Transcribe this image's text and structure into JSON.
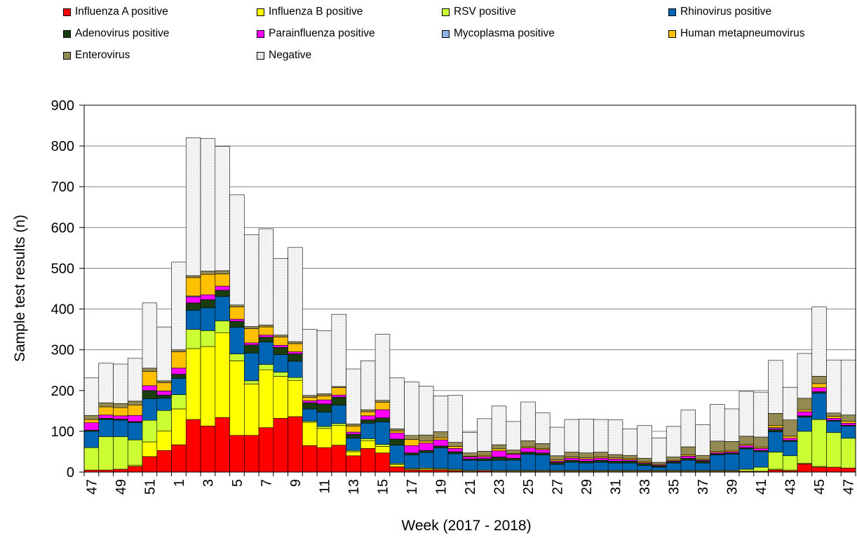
{
  "chart_data": {
    "type": "bar",
    "stacked": true,
    "xlabel": "Week (2017 - 2018)",
    "ylabel": "Sample test results (n)",
    "ylim": [
      0,
      900
    ],
    "yticks": [
      0,
      100,
      200,
      300,
      400,
      500,
      600,
      700,
      800,
      900
    ],
    "grid": true,
    "legend_position": "top",
    "categories": [
      "47",
      "48",
      "49",
      "50",
      "51",
      "52",
      "1",
      "2",
      "3",
      "4",
      "5",
      "6",
      "7",
      "8",
      "9",
      "10",
      "11",
      "12",
      "13",
      "14",
      "15",
      "16",
      "17",
      "18",
      "19",
      "20",
      "21",
      "22",
      "23",
      "24",
      "25",
      "26",
      "27",
      "28",
      "29",
      "30",
      "31",
      "32",
      "33",
      "34",
      "35",
      "36",
      "37",
      "38",
      "39",
      "40",
      "41",
      "42",
      "43",
      "44",
      "45",
      "46",
      "47"
    ],
    "xtick_labels": [
      "47",
      "49",
      "51",
      "1",
      "3",
      "5",
      "7",
      "9",
      "11",
      "13",
      "15",
      "17",
      "19",
      "21",
      "23",
      "25",
      "27",
      "29",
      "31",
      "33",
      "35",
      "37",
      "39",
      "41",
      "43",
      "45",
      "47"
    ],
    "series": [
      {
        "name": "Influenza A positive",
        "color": "#FF0000",
        "pattern": "solid",
        "values": [
          5,
          5,
          7,
          14,
          38,
          53,
          67,
          129,
          113,
          134,
          90,
          90,
          109,
          132,
          136,
          65,
          60,
          66,
          40,
          58,
          47,
          13,
          5,
          5,
          5,
          3,
          2,
          3,
          2,
          2,
          2,
          2,
          2,
          2,
          2,
          2,
          2,
          2,
          2,
          2,
          2,
          2,
          2,
          2,
          2,
          2,
          2,
          5,
          3,
          20,
          12,
          12,
          10
        ]
      },
      {
        "name": "Influenza B positive",
        "color": "#FFFF00",
        "pattern": "solid",
        "values": [
          0,
          0,
          0,
          3,
          36,
          48,
          88,
          174,
          195,
          208,
          183,
          126,
          142,
          103,
          89,
          57,
          47,
          48,
          10,
          19,
          16,
          5,
          2,
          3,
          2,
          2,
          0,
          0,
          0,
          0,
          0,
          0,
          0,
          0,
          0,
          0,
          0,
          0,
          0,
          0,
          0,
          0,
          0,
          0,
          0,
          0,
          0,
          2,
          2,
          2,
          2,
          0,
          0
        ]
      },
      {
        "name": "RSV positive",
        "color": "#CCFF33",
        "pattern": "solid",
        "values": [
          55,
          82,
          80,
          62,
          53,
          50,
          35,
          47,
          39,
          29,
          17,
          8,
          13,
          10,
          7,
          3,
          5,
          5,
          3,
          5,
          5,
          3,
          2,
          2,
          2,
          2,
          2,
          2,
          2,
          2,
          2,
          2,
          2,
          2,
          2,
          2,
          2,
          2,
          2,
          2,
          2,
          2,
          2,
          2,
          2,
          5,
          10,
          42,
          35,
          78,
          115,
          85,
          73
        ]
      },
      {
        "name": "Rhinovirus positive",
        "color": "#0066B3",
        "pattern": "solid",
        "values": [
          40,
          42,
          40,
          42,
          53,
          30,
          40,
          47,
          56,
          60,
          65,
          68,
          55,
          43,
          40,
          30,
          35,
          45,
          30,
          38,
          55,
          45,
          33,
          38,
          50,
          38,
          25,
          23,
          25,
          25,
          40,
          38,
          15,
          20,
          18,
          20,
          18,
          18,
          12,
          8,
          18,
          25,
          18,
          38,
          40,
          50,
          38,
          50,
          35,
          35,
          65,
          28,
          30
        ]
      },
      {
        "name": "Adenovirus positive",
        "color": "#1A3D0F",
        "pattern": "solid",
        "values": [
          3,
          3,
          3,
          3,
          20,
          8,
          10,
          18,
          20,
          15,
          15,
          20,
          12,
          18,
          18,
          15,
          20,
          20,
          10,
          8,
          10,
          15,
          5,
          5,
          5,
          5,
          3,
          5,
          8,
          5,
          5,
          5,
          5,
          5,
          5,
          5,
          5,
          5,
          5,
          3,
          3,
          5,
          5,
          3,
          3,
          3,
          3,
          5,
          3,
          3,
          3,
          2,
          2
        ]
      },
      {
        "name": "Parainfluenza positive",
        "color": "#FF00FF",
        "pattern": "solid",
        "values": [
          18,
          8,
          8,
          15,
          12,
          10,
          15,
          15,
          12,
          10,
          5,
          5,
          5,
          5,
          5,
          5,
          10,
          5,
          5,
          10,
          20,
          15,
          18,
          18,
          15,
          8,
          5,
          5,
          15,
          10,
          10,
          8,
          3,
          5,
          5,
          5,
          5,
          3,
          2,
          2,
          2,
          5,
          2,
          3,
          3,
          5,
          5,
          3,
          5,
          10,
          10,
          5,
          5
        ]
      },
      {
        "name": "Mycoplasma positive",
        "color": "#8EB4E3",
        "pattern": "solid",
        "values": [
          0,
          0,
          0,
          0,
          0,
          0,
          0,
          2,
          0,
          0,
          0,
          0,
          0,
          0,
          0,
          0,
          0,
          0,
          0,
          0,
          0,
          0,
          0,
          0,
          0,
          0,
          0,
          0,
          0,
          0,
          0,
          0,
          0,
          0,
          0,
          0,
          0,
          0,
          0,
          0,
          0,
          0,
          0,
          0,
          0,
          0,
          0,
          2,
          0,
          0,
          0,
          0,
          0
        ]
      },
      {
        "name": "Human metapneumovirus",
        "color": "#FFC000",
        "pattern": "solid",
        "values": [
          8,
          20,
          20,
          25,
          35,
          20,
          40,
          45,
          50,
          30,
          30,
          35,
          20,
          20,
          20,
          8,
          10,
          18,
          15,
          10,
          18,
          5,
          15,
          5,
          5,
          5,
          2,
          3,
          5,
          2,
          3,
          3,
          3,
          3,
          3,
          3,
          3,
          3,
          3,
          2,
          2,
          3,
          2,
          3,
          3,
          3,
          3,
          5,
          5,
          5,
          10,
          5,
          5
        ]
      },
      {
        "name": "Enterovirus",
        "color": "#948A54",
        "pattern": "solid",
        "values": [
          10,
          10,
          10,
          10,
          8,
          5,
          5,
          5,
          8,
          8,
          5,
          5,
          5,
          5,
          5,
          5,
          5,
          3,
          5,
          5,
          5,
          5,
          10,
          15,
          15,
          10,
          8,
          10,
          10,
          8,
          15,
          12,
          10,
          12,
          12,
          12,
          8,
          8,
          8,
          5,
          8,
          20,
          10,
          25,
          22,
          20,
          25,
          30,
          40,
          28,
          18,
          8,
          15
        ]
      },
      {
        "name": "Negative",
        "color": "#F2F2F2",
        "pattern": "dots",
        "values": [
          92,
          97,
          97,
          105,
          160,
          132,
          215,
          338,
          325,
          305,
          270,
          225,
          236,
          188,
          231,
          162,
          155,
          177,
          135,
          120,
          162,
          125,
          131,
          120,
          88,
          115,
          50,
          80,
          95,
          70,
          95,
          75,
          70,
          80,
          83,
          80,
          85,
          65,
          80,
          60,
          75,
          90,
          75,
          90,
          80,
          110,
          110,
          130,
          80,
          110,
          170,
          130,
          135
        ]
      }
    ]
  }
}
